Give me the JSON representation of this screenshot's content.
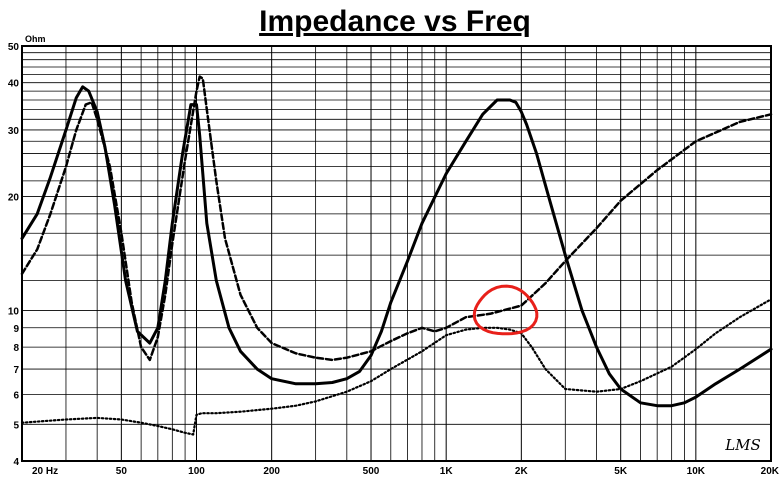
{
  "chart_data": {
    "type": "line",
    "title": "Impedance vs Freq",
    "y_unit": "Ohm",
    "x_scale": "log",
    "y_scale": "log",
    "xlim": [
      20,
      20000
    ],
    "ylim": [
      4,
      50
    ],
    "grid": true,
    "x_tick_labels": [
      {
        "value": 20,
        "label": "20 Hz"
      },
      {
        "value": 50,
        "label": "50"
      },
      {
        "value": 100,
        "label": "100"
      },
      {
        "value": 200,
        "label": "200"
      },
      {
        "value": 500,
        "label": "500"
      },
      {
        "value": 1000,
        "label": "1K"
      },
      {
        "value": 2000,
        "label": "2K"
      },
      {
        "value": 5000,
        "label": "5K"
      },
      {
        "value": 10000,
        "label": "10K"
      },
      {
        "value": 20000,
        "label": "20K"
      }
    ],
    "y_tick_labels": [
      {
        "value": 50,
        "label": "50"
      },
      {
        "value": 40,
        "label": "40"
      },
      {
        "value": 30,
        "label": "30"
      },
      {
        "value": 20,
        "label": "20"
      },
      {
        "value": 10,
        "label": "10"
      },
      {
        "value": 9,
        "label": "9"
      },
      {
        "value": 8,
        "label": "8"
      },
      {
        "value": 7,
        "label": "7"
      },
      {
        "value": 6,
        "label": "6"
      },
      {
        "value": 5,
        "label": "5"
      },
      {
        "value": 4,
        "label": "4"
      }
    ],
    "series": [
      {
        "style": "solid",
        "x": [
          20,
          23,
          26,
          30,
          33,
          35,
          37,
          40,
          43,
          47,
          52,
          58,
          65,
          70,
          75,
          80,
          88,
          95,
          100,
          103,
          106,
          110,
          120,
          135,
          150,
          175,
          200,
          250,
          300,
          350,
          400,
          450,
          500,
          550,
          600,
          700,
          800,
          1000,
          1200,
          1400,
          1600,
          1800,
          1900,
          2000,
          2100,
          2300,
          2600,
          3000,
          3500,
          4000,
          4500,
          5000,
          6000,
          7000,
          8000,
          9000,
          10000,
          12000,
          15000,
          20000
        ],
        "values": [
          15.5,
          18,
          22.5,
          30,
          36.5,
          39,
          38,
          33.5,
          27,
          19,
          12,
          8.8,
          8.2,
          9,
          12,
          17,
          26,
          35,
          35,
          29,
          23,
          17,
          12,
          9,
          7.8,
          7,
          6.6,
          6.4,
          6.4,
          6.45,
          6.6,
          6.9,
          7.6,
          8.8,
          10.5,
          13.5,
          17,
          23,
          28,
          33,
          36,
          36,
          35.5,
          33.5,
          31,
          26,
          19.5,
          14,
          10,
          8,
          6.8,
          6.2,
          5.7,
          5.6,
          5.6,
          5.7,
          5.9,
          6.4,
          7,
          7.9
        ]
      },
      {
        "style": "dashed",
        "x": [
          20,
          23,
          26,
          30,
          33,
          36,
          38,
          40,
          45,
          50,
          55,
          60,
          65,
          70,
          75,
          80,
          90,
          100,
          103,
          106,
          110,
          120,
          130,
          150,
          175,
          200,
          250,
          300,
          350,
          400,
          500,
          600,
          700,
          800,
          900,
          1000,
          1200,
          1500,
          2000,
          2500,
          3000,
          4000,
          5000,
          7000,
          10000,
          15000,
          20000
        ],
        "values": [
          12.5,
          14.5,
          18,
          24,
          30,
          35,
          35.5,
          32,
          24,
          16,
          10.5,
          8,
          7.4,
          8.5,
          11,
          15,
          25,
          38,
          41.5,
          41,
          34,
          22,
          15.5,
          11,
          9,
          8.2,
          7.7,
          7.5,
          7.4,
          7.5,
          7.8,
          8.3,
          8.7,
          9.0,
          8.8,
          9.0,
          9.6,
          9.8,
          10.3,
          11.8,
          13.5,
          16.5,
          19.5,
          23.5,
          28,
          31.5,
          33
        ]
      },
      {
        "style": "dotted",
        "x": [
          20,
          30,
          40,
          50,
          60,
          70,
          80,
          90,
          97,
          99,
          100,
          105,
          120,
          150,
          200,
          250,
          300,
          400,
          500,
          600,
          800,
          1000,
          1200,
          1400,
          1600,
          1800,
          2000,
          2200,
          2500,
          3000,
          4000,
          5000,
          6000,
          8000,
          10000,
          12000,
          15000,
          20000
        ],
        "values": [
          5.05,
          5.15,
          5.2,
          5.15,
          5.05,
          4.95,
          4.85,
          4.75,
          4.7,
          5.1,
          5.3,
          5.35,
          5.35,
          5.4,
          5.5,
          5.6,
          5.75,
          6.1,
          6.5,
          7.0,
          7.8,
          8.6,
          8.9,
          9.0,
          9.0,
          8.9,
          8.7,
          8.0,
          7.0,
          6.2,
          6.1,
          6.2,
          6.5,
          7.1,
          7.9,
          8.7,
          9.6,
          10.7
        ]
      }
    ],
    "annotations": [
      {
        "type": "freehand-circle",
        "color": "#e8201a",
        "x_range": [
          1300,
          2300
        ],
        "y_range": [
          8.6,
          11.5
        ]
      }
    ],
    "logo": "LMS"
  }
}
